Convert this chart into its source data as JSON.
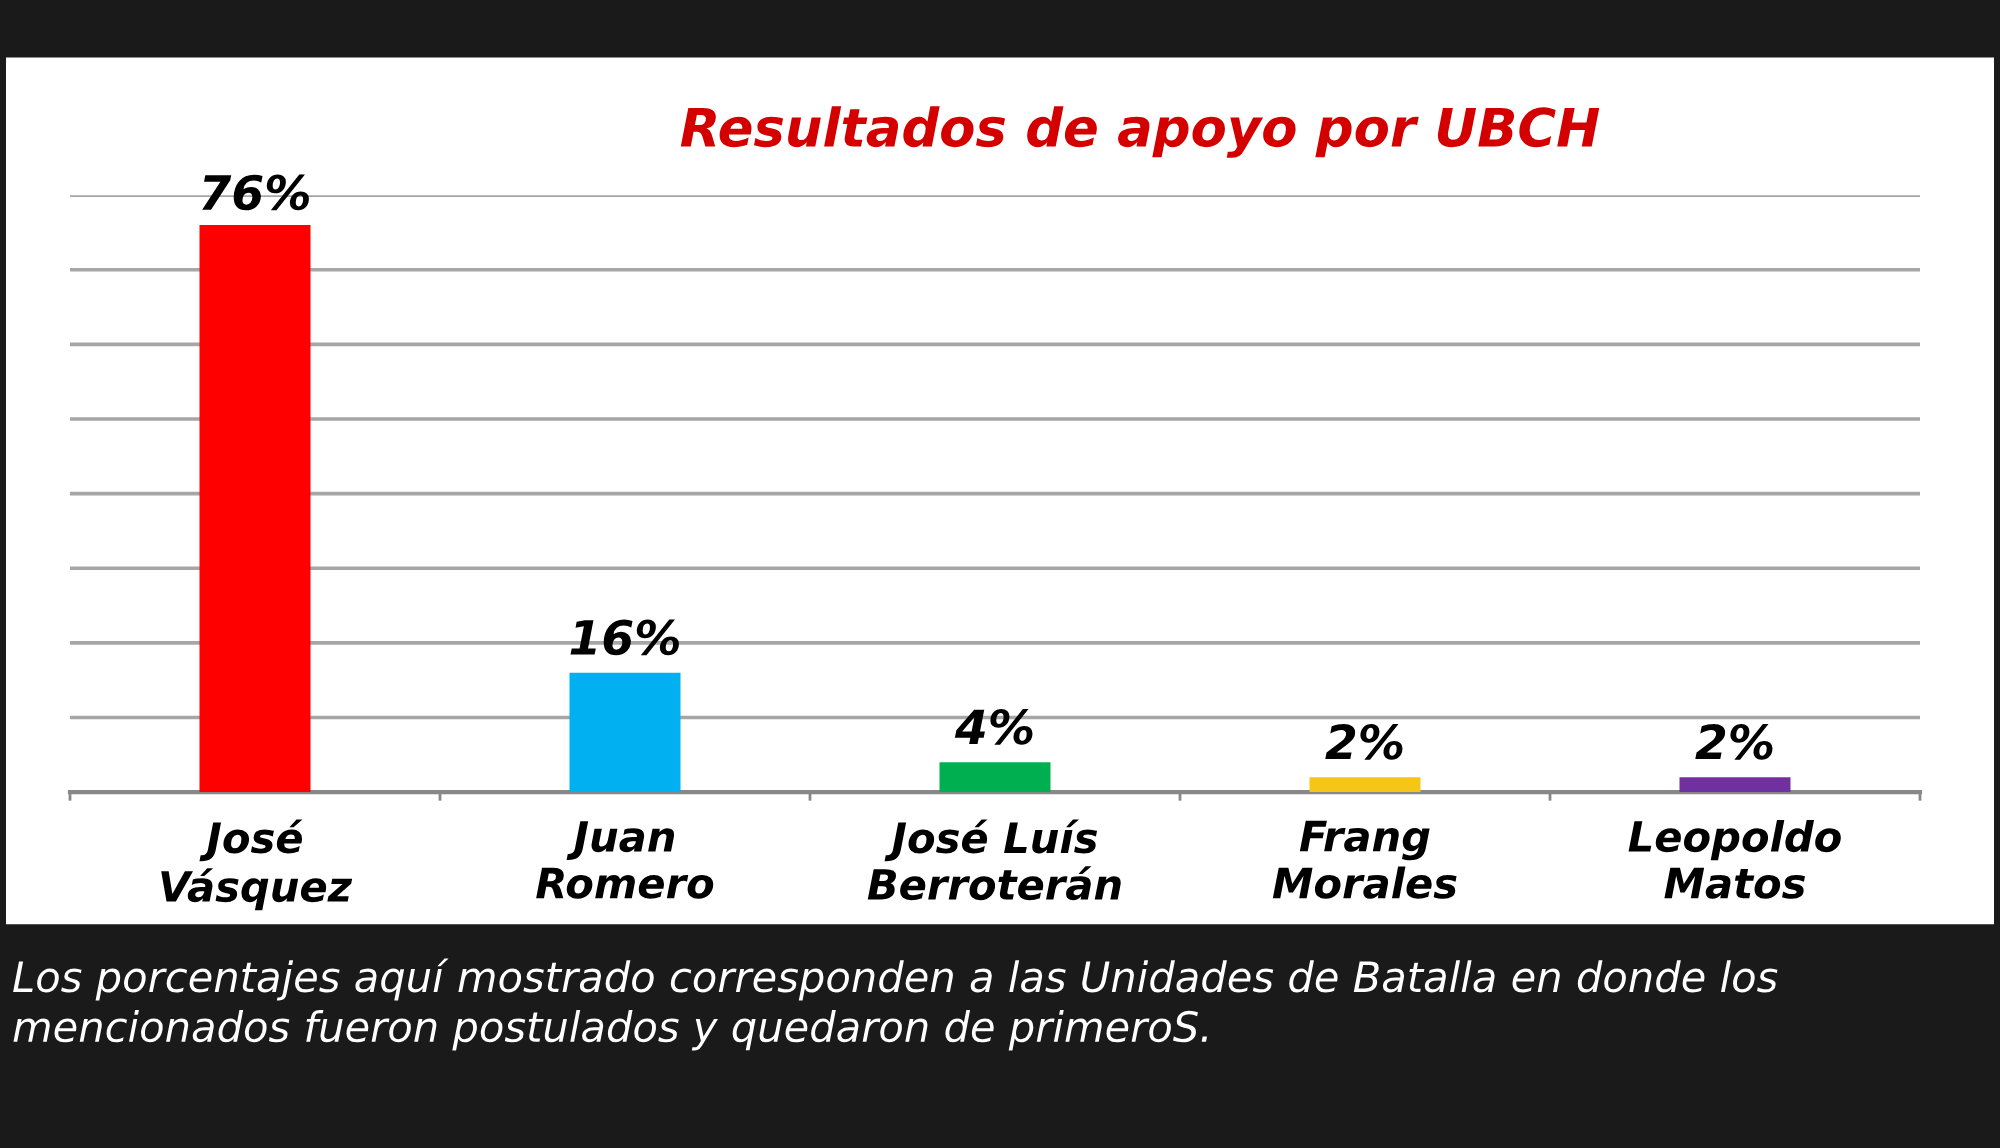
{
  "chart_data": {
    "type": "bar",
    "title": "Resultados de apoyo por UBCH",
    "categories": [
      "José\nVásquez",
      "Juan\nRomero",
      "José Luís\nBerroterán",
      "Frang\nMorales",
      "Leopoldo\nMatos"
    ],
    "values": [
      76,
      16,
      4,
      2,
      2
    ],
    "colors": [
      "#ff0000",
      "#00b0f0",
      "#00b050",
      "#f5c518",
      "#7030a0"
    ],
    "value_labels": [
      "76%",
      "16%",
      "4%",
      "2%",
      "2%"
    ],
    "ylim": [
      0,
      80
    ],
    "yticks": [
      {
        "value": 0,
        "label": null
      },
      {
        "value": 10,
        "label": null
      },
      {
        "value": 20,
        "label": null
      },
      {
        "value": 30,
        "label": null
      },
      {
        "value": 40,
        "label": null
      },
      {
        "value": 50,
        "label": null
      },
      {
        "value": 60,
        "label": null
      },
      {
        "value": 70,
        "label": null
      },
      {
        "value": 80,
        "label": null
      }
    ],
    "grid": "y",
    "tick_labels": "x",
    "annotations": [
      "Los porcentajes aquí mostrado corresponden a las Unidades de Batalla en donde los mencionados fueron postulados y quedaron de primeroS."
    ]
  }
}
